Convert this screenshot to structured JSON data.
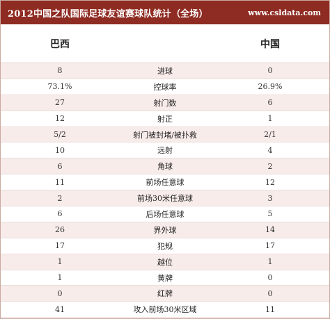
{
  "header": {
    "title": "2012中国之队国际足球友谊赛球队统计（全场）",
    "site": "www.csldata.com"
  },
  "teams": {
    "left": "巴西",
    "right": "中国"
  },
  "stats": [
    {
      "label": "进球",
      "left": "8",
      "right": "0"
    },
    {
      "label": "控球率",
      "left": "73.1%",
      "right": "26.9%"
    },
    {
      "label": "射门数",
      "left": "27",
      "right": "6"
    },
    {
      "label": "射正",
      "left": "12",
      "right": "1"
    },
    {
      "label": "射门被封堵/被扑救",
      "left": "5/2",
      "right": "2/1"
    },
    {
      "label": "远射",
      "left": "10",
      "right": "4"
    },
    {
      "label": "角球",
      "left": "6",
      "right": "2"
    },
    {
      "label": "前场任意球",
      "left": "11",
      "right": "12"
    },
    {
      "label": "前场30米任意球",
      "left": "2",
      "right": "3"
    },
    {
      "label": "后场任意球",
      "left": "6",
      "right": "5"
    },
    {
      "label": "界外球",
      "left": "26",
      "right": "14"
    },
    {
      "label": "犯规",
      "left": "17",
      "right": "17"
    },
    {
      "label": "越位",
      "left": "1",
      "right": "1"
    },
    {
      "label": "黄牌",
      "left": "1",
      "right": "0"
    },
    {
      "label": "红牌",
      "left": "0",
      "right": "0"
    },
    {
      "label": "攻入前场30米区域",
      "left": "41",
      "right": "11"
    }
  ],
  "colors": {
    "title_bg": "#8e2b22",
    "stripe": "#f8ecea"
  }
}
